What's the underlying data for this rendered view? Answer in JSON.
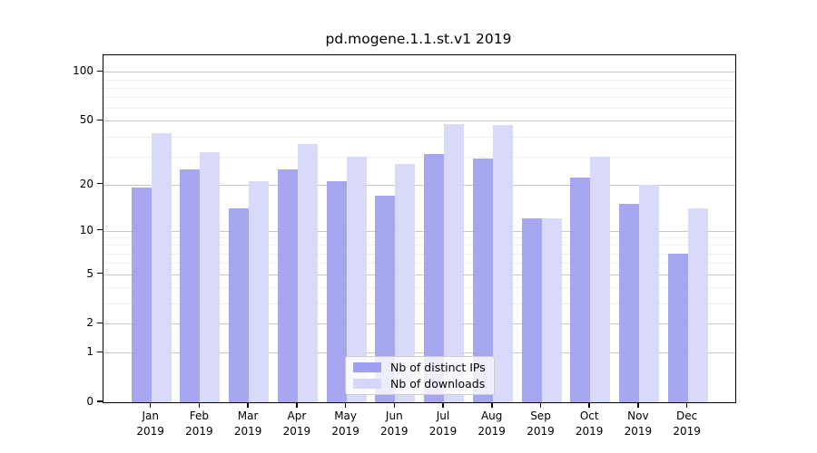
{
  "chart_data": {
    "type": "bar",
    "title": "pd.mogene.1.1.st.v1 2019",
    "x_year": "2019",
    "x_months": [
      "Jan",
      "Feb",
      "Mar",
      "Apr",
      "May",
      "Jun",
      "Jul",
      "Aug",
      "Sep",
      "Oct",
      "Nov",
      "Dec"
    ],
    "categories": [
      "Jan 2019",
      "Feb 2019",
      "Mar 2019",
      "Apr 2019",
      "May 2019",
      "Jun 2019",
      "Jul 2019",
      "Aug 2019",
      "Sep 2019",
      "Oct 2019",
      "Nov 2019",
      "Dec 2019"
    ],
    "series": [
      {
        "name": "Nb of distinct IPs",
        "color": "#a0a0f0",
        "values": [
          19,
          25,
          14,
          25,
          21,
          17,
          31,
          29,
          12,
          22,
          15,
          7
        ]
      },
      {
        "name": "Nb of downloads",
        "color": "#d6d6f8",
        "values": [
          42,
          32,
          21,
          36,
          30,
          27,
          48,
          47,
          12,
          30,
          20,
          14
        ]
      }
    ],
    "yscale": "log1p",
    "y_ticks": [
      0,
      1,
      2,
      5,
      10,
      20,
      50,
      100
    ],
    "y_minor_gridlines": [
      3,
      4,
      6,
      7,
      8,
      9,
      30,
      40,
      60,
      70,
      80,
      90
    ],
    "ylim": [
      0,
      127
    ],
    "xlabel": "",
    "ylabel": "",
    "grid": true,
    "legend": {
      "position": "inside-bottom-center",
      "items": [
        "Nb of distinct IPs",
        "Nb of downloads"
      ]
    }
  }
}
